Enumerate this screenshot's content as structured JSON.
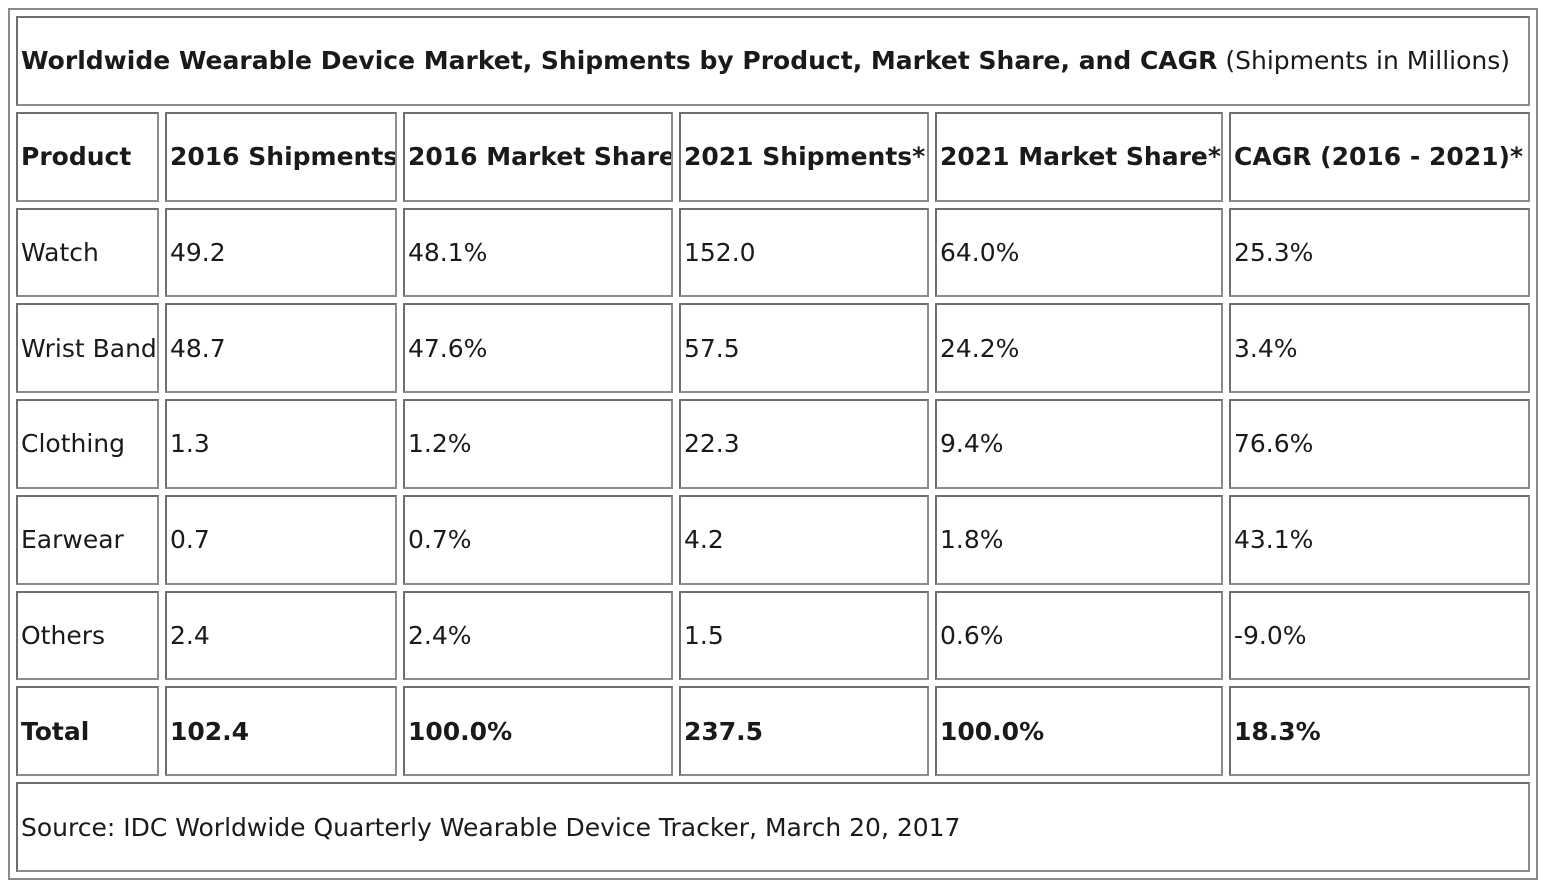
{
  "title": {
    "bold": "Worldwide Wearable Device Market, Shipments by Product, Market Share, and CAGR",
    "normal": " (Shipments in Millions)"
  },
  "headers": [
    "Product",
    "2016 Shipments",
    "2016 Market Share",
    "2021 Shipments*",
    "2021 Market Share*",
    "CAGR (2016 - 2021)*"
  ],
  "rows": [
    {
      "product": "Watch",
      "ship2016": "49.2",
      "share2016": "48.1%",
      "ship2021": "152.0",
      "share2021": "64.0%",
      "cagr": "25.3%"
    },
    {
      "product": "Wrist Band",
      "ship2016": "48.7",
      "share2016": "47.6%",
      "ship2021": "57.5",
      "share2021": "24.2%",
      "cagr": "3.4%"
    },
    {
      "product": "Clothing",
      "ship2016": "1.3",
      "share2016": "1.2%",
      "ship2021": "22.3",
      "share2021": "9.4%",
      "cagr": "76.6%"
    },
    {
      "product": "Earwear",
      "ship2016": "0.7",
      "share2016": "0.7%",
      "ship2021": "4.2",
      "share2021": "1.8%",
      "cagr": "43.1%"
    },
    {
      "product": "Others",
      "ship2016": "2.4",
      "share2016": "2.4%",
      "ship2021": "1.5",
      "share2021": "0.6%",
      "cagr": "-9.0%"
    }
  ],
  "total": {
    "product": "Total",
    "ship2016": "102.4",
    "share2016": "100.0%",
    "ship2021": "237.5",
    "share2021": "100.0%",
    "cagr": "18.3%"
  },
  "source": "Source: IDC Worldwide Quarterly Wearable Device Tracker, March 20, 2017"
}
